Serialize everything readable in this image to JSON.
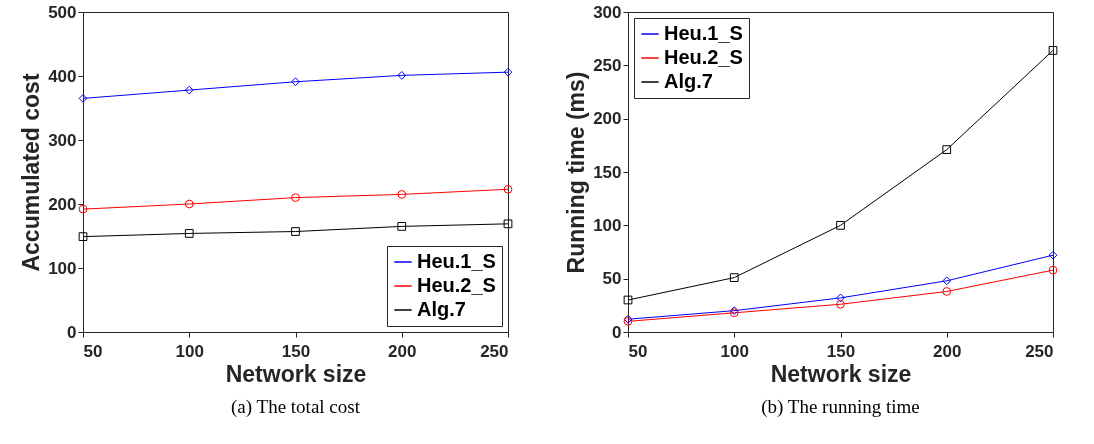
{
  "chart_data": [
    {
      "type": "line",
      "title": "(a)  The total cost",
      "xlabel": "Network size",
      "ylabel": "Accumulated cost",
      "x": [
        50,
        100,
        150,
        200,
        250
      ],
      "xlim": [
        50,
        250
      ],
      "xticks": [
        50,
        100,
        150,
        200,
        250
      ],
      "ylim": [
        0,
        500
      ],
      "yticks": [
        0,
        100,
        200,
        300,
        400,
        500
      ],
      "grid": false,
      "legend": "bottom right",
      "series": [
        {
          "name": "Heu.1_S",
          "color": "#0000ff",
          "marker": "diamond",
          "values": [
            365,
            378,
            391,
            401,
            406
          ]
        },
        {
          "name": "Heu.2_S",
          "color": "#ff0000",
          "marker": "circle",
          "values": [
            192,
            200,
            210,
            215,
            223
          ]
        },
        {
          "name": "Alg.7",
          "color": "#000000",
          "marker": "square",
          "values": [
            149,
            154,
            157,
            165,
            169
          ]
        }
      ]
    },
    {
      "type": "line",
      "title": "(b)  The running time",
      "xlabel": "Network size",
      "ylabel": "Running time (ms)",
      "x": [
        50,
        100,
        150,
        200,
        250
      ],
      "xlim": [
        50,
        250
      ],
      "xticks": [
        50,
        100,
        150,
        200,
        250
      ],
      "ylim": [
        0,
        300
      ],
      "yticks": [
        0,
        50,
        100,
        150,
        200,
        250,
        300
      ],
      "grid": false,
      "legend": "top left",
      "series": [
        {
          "name": "Heu.1_S",
          "color": "#0000ff",
          "marker": "diamond",
          "values": [
            12,
            20,
            32,
            48,
            72
          ]
        },
        {
          "name": "Heu.2_S",
          "color": "#ff0000",
          "marker": "circle",
          "values": [
            10,
            18,
            26,
            38,
            58
          ]
        },
        {
          "name": "Alg.7",
          "color": "#000000",
          "marker": "square",
          "values": [
            30,
            51,
            100,
            171,
            264
          ]
        }
      ]
    }
  ]
}
